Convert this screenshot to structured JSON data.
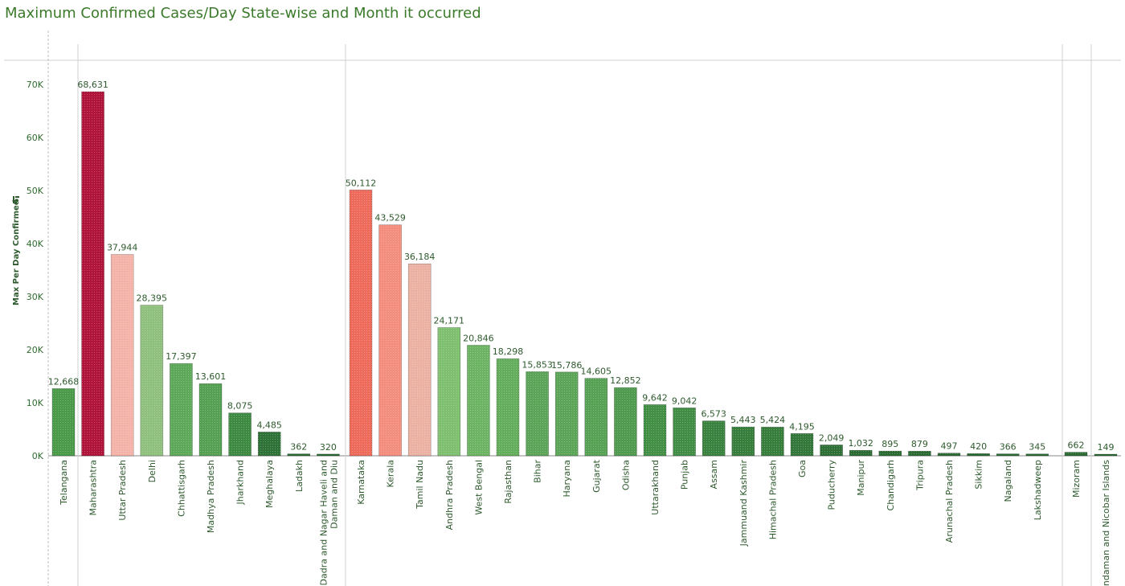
{
  "chart_data": {
    "type": "bar",
    "title": "Maximum Confirmed Cases/Day State-wise and Month it occurred",
    "ylabel": "Max Per Day Confirmed",
    "ylim": [
      0,
      75000
    ],
    "yticks": [
      "0K",
      "10K",
      "20K",
      "30K",
      "40K",
      "50K",
      "60K",
      "70K"
    ],
    "ytick_values": [
      0,
      10000,
      20000,
      30000,
      40000,
      50000,
      60000,
      70000
    ],
    "legend": "none",
    "grid": false,
    "sort_icon": "sort-descending-icon",
    "groups": [
      {
        "categories": [
          {
            "name": "Telangana",
            "value": 12668,
            "label": "12,668",
            "color": "#4a9a4a"
          },
          {
            "name": "Maharashtra",
            "value": 68631,
            "label": "68,631",
            "color": "#b0143a"
          },
          {
            "name": "Uttar Pradesh",
            "value": 37944,
            "label": "37,944",
            "color": "#f4b3a8"
          },
          {
            "name": "Delhi",
            "value": 28395,
            "label": "28,395",
            "color": "#8fc07e"
          },
          {
            "name": "Chhattisgarh",
            "value": 17397,
            "label": "17,397",
            "color": "#5ea85a"
          },
          {
            "name": "Madhya Pradesh",
            "value": 13601,
            "label": "13,601",
            "color": "#55a052"
          },
          {
            "name": "Jharkhand",
            "value": 8075,
            "label": "8,075",
            "color": "#3e8a42"
          },
          {
            "name": "Meghalaya",
            "value": 4485,
            "label": "4,485",
            "color": "#2f7238"
          },
          {
            "name": "Ladakh",
            "value": 362,
            "label": "362",
            "color": "#2a6a33"
          },
          {
            "name": "Dadra and Nagar Haveli and Daman and Diu",
            "lines": [
              "Dadra and Nagar Haveli and",
              "Daman and Diu"
            ],
            "value": 320,
            "label": "320",
            "color": "#2a6a33"
          }
        ]
      },
      {
        "categories": [
          {
            "name": "Karnataka",
            "value": 50112,
            "label": "50,112",
            "color": "#ee6a5a"
          },
          {
            "name": "Kerala",
            "value": 43529,
            "label": "43,529",
            "color": "#f38d7d"
          },
          {
            "name": "Tamil Nadu",
            "value": 36184,
            "label": "36,184",
            "color": "#ebb1a3"
          },
          {
            "name": "Andhra Pradesh",
            "value": 24171,
            "label": "24,171",
            "color": "#7fbf70"
          },
          {
            "name": "West Bengal",
            "value": 20846,
            "label": "20,846",
            "color": "#6cb463"
          },
          {
            "name": "Rajasthan",
            "value": 18298,
            "label": "18,298",
            "color": "#64ad5c"
          },
          {
            "name": "Bihar",
            "value": 15853,
            "label": "15,853",
            "color": "#5ca558"
          },
          {
            "name": "Haryana",
            "value": 15786,
            "label": "15,786",
            "color": "#5ca558"
          },
          {
            "name": "Gujarat",
            "value": 14605,
            "label": "14,605",
            "color": "#57a154"
          },
          {
            "name": "Odisha",
            "value": 12852,
            "label": "12,852",
            "color": "#4f9a4e"
          },
          {
            "name": "Uttarakhand",
            "value": 9642,
            "label": "9,642",
            "color": "#448f46"
          },
          {
            "name": "Punjab",
            "value": 9042,
            "label": "9,042",
            "color": "#428d45"
          },
          {
            "name": "Assam",
            "value": 6573,
            "label": "6,573",
            "color": "#3a823f"
          },
          {
            "name": "Jammuand Kashmir",
            "value": 5443,
            "label": "5,443",
            "color": "#377d3c"
          },
          {
            "name": "Himachal Pradesh",
            "value": 5424,
            "label": "5,424",
            "color": "#377d3c"
          },
          {
            "name": "Goa",
            "value": 4195,
            "label": "4,195",
            "color": "#33773a"
          },
          {
            "name": "Puducherry",
            "value": 2049,
            "label": "2,049",
            "color": "#2e7036"
          },
          {
            "name": "Manipur",
            "value": 1032,
            "label": "1,032",
            "color": "#2b6c34"
          },
          {
            "name": "Chandigarh",
            "value": 895,
            "label": "895",
            "color": "#2b6c34"
          },
          {
            "name": "Tripura",
            "value": 879,
            "label": "879",
            "color": "#2b6c34"
          },
          {
            "name": "Arunachal Pradesh",
            "value": 497,
            "label": "497",
            "color": "#2a6a33"
          },
          {
            "name": "Sikkim",
            "value": 420,
            "label": "420",
            "color": "#2a6a33"
          },
          {
            "name": "Nagaland",
            "value": 366,
            "label": "366",
            "color": "#2a6a33"
          },
          {
            "name": "Lakshadweep",
            "value": 345,
            "label": "345",
            "color": "#2a6a33"
          }
        ]
      },
      {
        "categories": [
          {
            "name": "Mizoram",
            "value": 662,
            "label": "662",
            "color": "#2b6c34"
          }
        ]
      },
      {
        "categories": [
          {
            "name": "Andaman and Nicobar Islands",
            "value": 149,
            "label": "149",
            "color": "#2a6a33"
          }
        ]
      }
    ]
  }
}
